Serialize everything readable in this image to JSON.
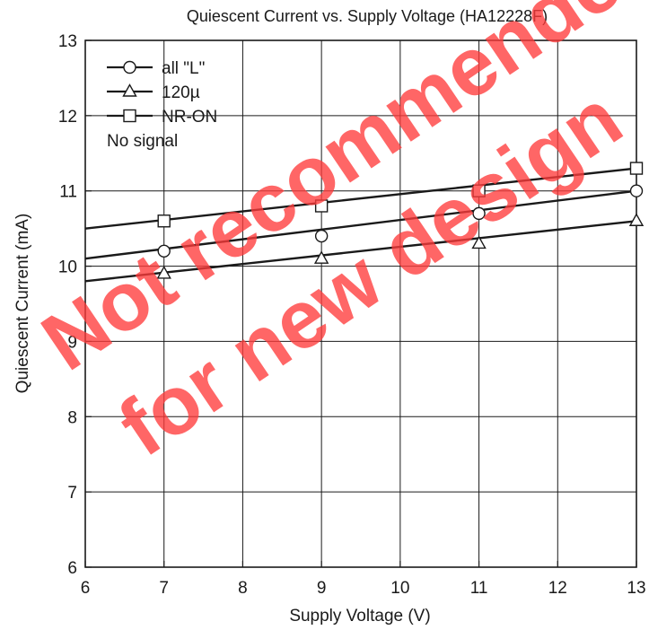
{
  "chart_data": {
    "type": "line",
    "title": "Quiescent Current vs. Supply Voltage (HA12228F)",
    "xlabel": "Supply Voltage  (V)",
    "ylabel": "Quiescent Current  (mA)",
    "xlim": [
      6,
      13
    ],
    "ylim": [
      6,
      13
    ],
    "xticks": [
      6,
      7,
      8,
      9,
      10,
      11,
      12,
      13
    ],
    "yticks": [
      6,
      7,
      8,
      9,
      10,
      11,
      12,
      13
    ],
    "grid": true,
    "legend_position": "top-left",
    "legend_note": "No signal",
    "series": [
      {
        "name": "all \"L\"",
        "marker": "circle",
        "line": [
          [
            6,
            10.1
          ],
          [
            13,
            11.0
          ]
        ],
        "points": [
          [
            7,
            10.2
          ],
          [
            9,
            10.4
          ],
          [
            11,
            10.7
          ],
          [
            13,
            11.0
          ]
        ]
      },
      {
        "name": "120µ",
        "marker": "triangle",
        "line": [
          [
            6,
            9.8
          ],
          [
            13,
            10.6
          ]
        ],
        "points": [
          [
            7,
            9.9
          ],
          [
            9,
            10.1
          ],
          [
            11,
            10.3
          ],
          [
            13,
            10.6
          ]
        ]
      },
      {
        "name": "NR-ON",
        "marker": "square",
        "line": [
          [
            6,
            10.5
          ],
          [
            13,
            11.3
          ]
        ],
        "points": [
          [
            7,
            10.6
          ],
          [
            9,
            10.8
          ],
          [
            11,
            11.0
          ],
          [
            13,
            11.3
          ]
        ]
      }
    ]
  },
  "watermark": {
    "line1": "Not recommended",
    "line2": "for new design",
    "color": "#ff3b3b"
  }
}
